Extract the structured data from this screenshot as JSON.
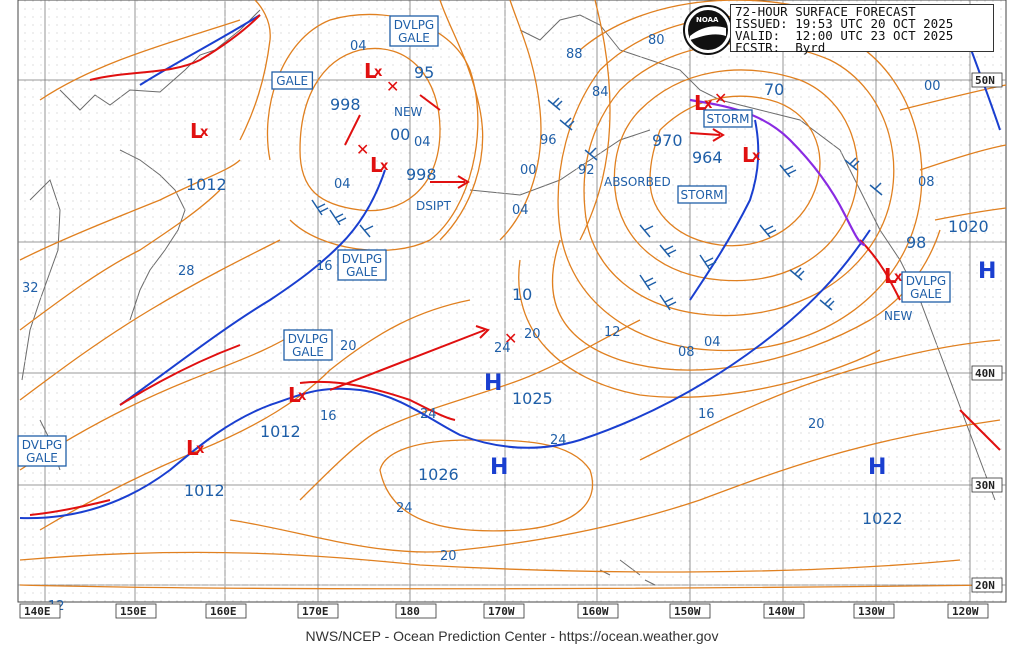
{
  "header": {
    "title": "72-HOUR SURFACE FORECAST",
    "issued": "ISSUED: 19:53 UTC 20 OCT 2025",
    "valid": "VALID:  12:00 UTC 23 OCT 2025",
    "forecaster": "FCSTR:  Byrd"
  },
  "footer": "NWS/NCEP - Ocean Prediction Center - https://ocean.weather.gov",
  "colors": {
    "isobar": "#e08020",
    "label": "#1f5fa8",
    "high": "#1a3fd0",
    "low": "#e01010",
    "coast": "#7a7a7a",
    "occluded": "#8a2be2"
  },
  "longitude_labels": [
    "140E",
    "150E",
    "160E",
    "170E",
    "180",
    "170W",
    "160W",
    "150W",
    "140W",
    "130W",
    "120W"
  ],
  "latitude_labels": [
    "50N",
    "40N",
    "30N",
    "20N"
  ],
  "highs": [
    {
      "label": "H",
      "pressure": "1025"
    },
    {
      "label": "H",
      "pressure": "1026"
    },
    {
      "label": "H",
      "pressure": "1022"
    },
    {
      "label": "H",
      "pressure": "1020"
    }
  ],
  "lows": [
    {
      "pressure": "1012"
    },
    {
      "pressure": "1012"
    },
    {
      "pressure": "1012"
    },
    {
      "pressure": "998"
    },
    {
      "pressure": "998"
    },
    {
      "pressure": "95"
    },
    {
      "pressure": "00"
    },
    {
      "pressure": "970"
    },
    {
      "pressure": "964"
    },
    {
      "pressure": "70"
    },
    {
      "pressure": "98"
    },
    {
      "pressure": "10"
    }
  ],
  "warnings": [
    "DVLPG GALE",
    "DVLPG GALE",
    "GALE",
    "DVLPG GALE",
    "DVLPG GALE",
    "DVLPG GALE",
    "STORM",
    "STORM"
  ],
  "annotations": [
    "NEW",
    "DSIPT",
    "ABSORBED",
    "NEW"
  ],
  "isobar_labels": [
    "04",
    "04",
    "04",
    "04",
    "00",
    "00",
    "96",
    "92",
    "88",
    "84",
    "80",
    "08",
    "04",
    "12",
    "16",
    "16",
    "20",
    "20",
    "20",
    "24",
    "24",
    "24",
    "24",
    "28",
    "32",
    "12",
    "16",
    "20",
    "08"
  ]
}
